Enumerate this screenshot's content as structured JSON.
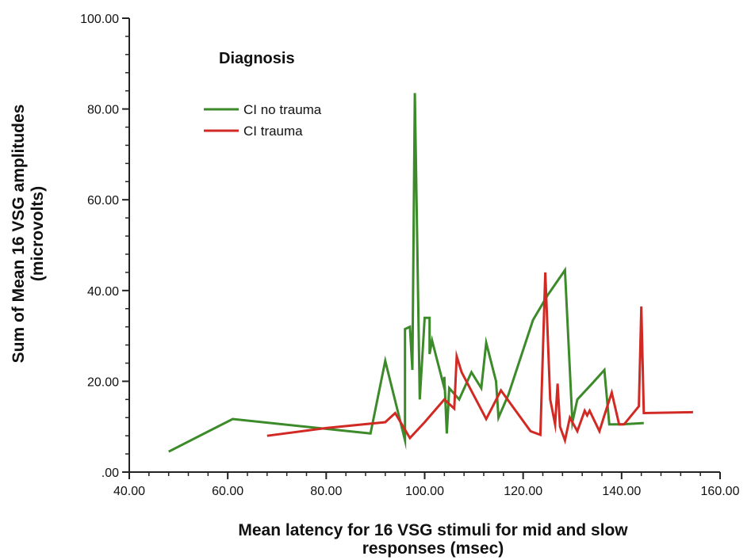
{
  "chart_data": {
    "type": "line",
    "xlabel": [
      "Mean latency for 16 VSG stimuli for mid and slow",
      "responses (msec)"
    ],
    "ylabel": [
      "Sum of Mean 16 VSG amplitudes",
      "(microvolts)"
    ],
    "xlim": [
      40,
      160
    ],
    "ylim": [
      0,
      100
    ],
    "x_ticks": [
      "40.00",
      "60.00",
      "80.00",
      "100.00",
      "120.00",
      "140.00",
      "160.00"
    ],
    "y_ticks": [
      ".00",
      "20.00",
      "40.00",
      "60.00",
      "80.00",
      "100.00"
    ],
    "grid": false,
    "legend": {
      "title": "Diagnosis",
      "placement": "top-left",
      "entries": [
        "CI no trauma",
        "CI trauma"
      ]
    },
    "series": [
      {
        "name": "CI no trauma",
        "color": "#3c8a2a",
        "points": [
          [
            48,
            4.5
          ],
          [
            61,
            11.7
          ],
          [
            89,
            8.5
          ],
          [
            92,
            24.5
          ],
          [
            96,
            7
          ],
          [
            96,
            31.5
          ],
          [
            97,
            32
          ],
          [
            97.5,
            22.5
          ],
          [
            98,
            83.5
          ],
          [
            99,
            16
          ],
          [
            100,
            34
          ],
          [
            101,
            34
          ],
          [
            101,
            26
          ],
          [
            101.5,
            29
          ],
          [
            104,
            18.5
          ],
          [
            104,
            21
          ],
          [
            104.5,
            8.5
          ],
          [
            105,
            18.5
          ],
          [
            107,
            16
          ],
          [
            109.5,
            22
          ],
          [
            111.5,
            18.5
          ],
          [
            112.5,
            28.5
          ],
          [
            114.5,
            20
          ],
          [
            115,
            12
          ],
          [
            117,
            17
          ],
          [
            122,
            33.5
          ],
          [
            125,
            39
          ],
          [
            128.5,
            44.5
          ],
          [
            130,
            11
          ],
          [
            131,
            16
          ],
          [
            134,
            19.5
          ],
          [
            136.5,
            22.5
          ],
          [
            137.5,
            10.5
          ],
          [
            140,
            10.5
          ],
          [
            144.5,
            10.8
          ]
        ]
      },
      {
        "name": "CI trauma",
        "color": "#d12a24",
        "points": [
          [
            68,
            8
          ],
          [
            80,
            9.7
          ],
          [
            92,
            11
          ],
          [
            94,
            13
          ],
          [
            97,
            7.5
          ],
          [
            100,
            11
          ],
          [
            104,
            16
          ],
          [
            106,
            14
          ],
          [
            106.5,
            25.5
          ],
          [
            107.5,
            22
          ],
          [
            112.5,
            11.7
          ],
          [
            115.5,
            18
          ],
          [
            121.5,
            9
          ],
          [
            123.5,
            8.2
          ],
          [
            124.5,
            44
          ],
          [
            125.5,
            16
          ],
          [
            126.5,
            10.5
          ],
          [
            127,
            19.5
          ],
          [
            127.5,
            10
          ],
          [
            128.5,
            7
          ],
          [
            129.5,
            12
          ],
          [
            131,
            9
          ],
          [
            132.5,
            13.5
          ],
          [
            133,
            12.5
          ],
          [
            133.5,
            13.5
          ],
          [
            135.5,
            9
          ],
          [
            136.5,
            12.5
          ],
          [
            138,
            17.5
          ],
          [
            139.5,
            10.5
          ],
          [
            140.5,
            10.5
          ],
          [
            143.5,
            14.5
          ],
          [
            144,
            36.5
          ],
          [
            144.5,
            13
          ],
          [
            154.5,
            13.2
          ]
        ]
      }
    ]
  }
}
